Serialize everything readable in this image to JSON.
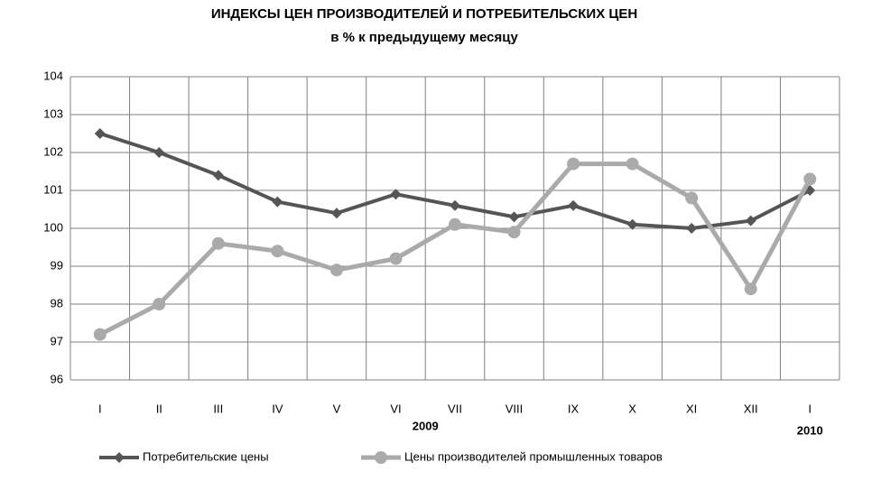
{
  "chart_data": {
    "type": "line",
    "title": "ИНДЕКСЫ ЦЕН ПРОИЗВОДИТЕЛЕЙ И ПОТРЕБИТЕЛЬСКИХ ЦЕН",
    "subtitle": "в % к предыдущему месяцу",
    "categories": [
      "I",
      "II",
      "III",
      "IV",
      "V",
      "VI",
      "VII",
      "VIII",
      "IX",
      "X",
      "XI",
      "XII",
      "I"
    ],
    "year_labels": [
      "2009",
      "2010"
    ],
    "series": [
      {
        "name": "Потребительские цены",
        "color": "#555555",
        "marker": "diamond",
        "values": [
          102.5,
          102.0,
          101.4,
          100.7,
          100.4,
          100.9,
          100.6,
          100.3,
          100.6,
          100.1,
          100.0,
          100.2,
          101.0
        ]
      },
      {
        "name": "Цены производителей промышленных товаров",
        "color": "#aaaaaa",
        "marker": "circle",
        "values": [
          97.2,
          98.0,
          99.6,
          99.4,
          98.9,
          99.2,
          100.1,
          99.9,
          101.7,
          101.7,
          100.8,
          98.4,
          101.3
        ]
      }
    ],
    "ylim": [
      96,
      104
    ],
    "yticks": [
      96,
      97,
      98,
      99,
      100,
      101,
      102,
      103,
      104
    ],
    "grid": true,
    "legend": "bottom"
  }
}
